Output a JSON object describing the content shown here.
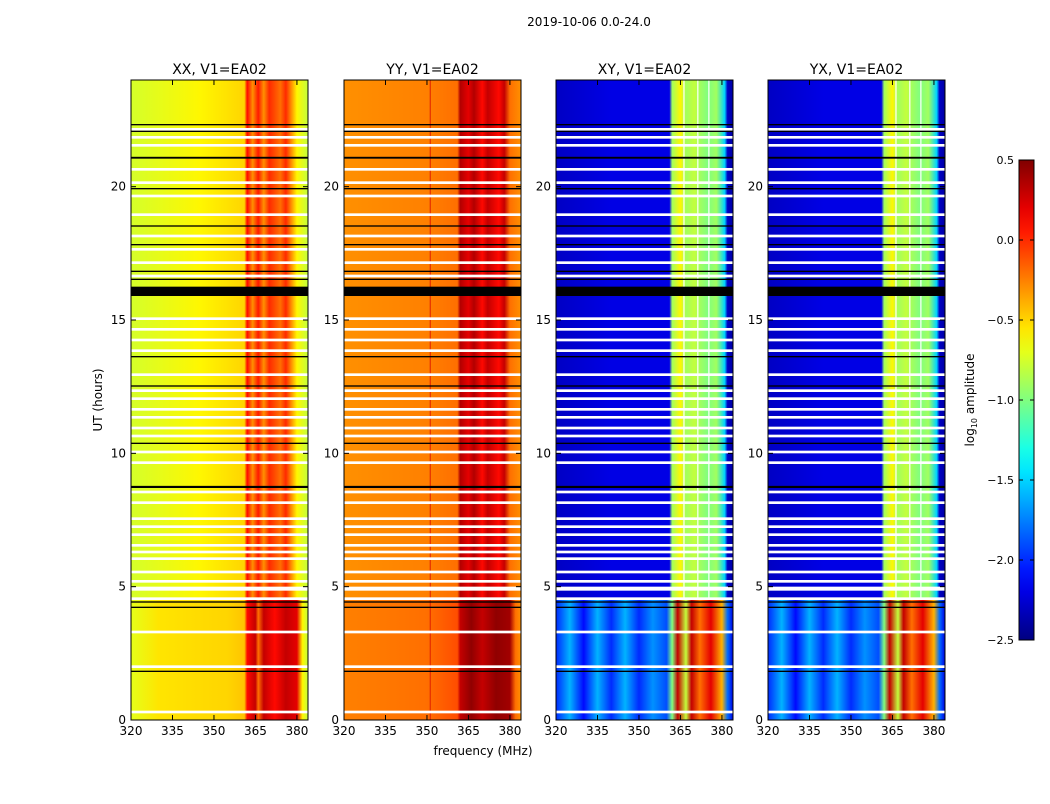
{
  "chart_data": {
    "type": "heatmap",
    "title": "2019-10-06 0.0-24.0",
    "xlabel": "frequency (MHz)",
    "ylabel": "UT (hours)",
    "xlim": [
      320,
      384
    ],
    "ylim": [
      0,
      24
    ],
    "xticks": [
      "320",
      "335",
      "350",
      "365",
      "380"
    ],
    "xtick_values": [
      320,
      335,
      350,
      365,
      380
    ],
    "yticks": [
      "0",
      "5",
      "10",
      "15",
      "20"
    ],
    "ytick_values": [
      0,
      5,
      10,
      15,
      20
    ],
    "colorbar": {
      "label_prefix": "log",
      "label_sub": "10",
      "label_suffix": " amplitude",
      "range": [
        -2.5,
        0.5
      ],
      "colormap": "jet",
      "ticks": [
        "0.5",
        "0.0",
        "−0.5",
        "−1.0",
        "−1.5",
        "−2.0",
        "−2.5"
      ],
      "tick_values": [
        0.5,
        0.0,
        -0.5,
        -1.0,
        -1.5,
        -2.0,
        -2.5
      ]
    },
    "epoch_boundary_hours": 4.5,
    "panels": [
      {
        "title": "XX, V1=EA02",
        "early_profile": [
          [
            320,
            -0.7
          ],
          [
            330,
            -0.55
          ],
          [
            355,
            -0.5
          ],
          [
            361,
            -0.45
          ],
          [
            362,
            0.1
          ],
          [
            365,
            0.3
          ],
          [
            366,
            -0.2
          ],
          [
            368,
            0.3
          ],
          [
            372,
            0.1
          ],
          [
            376,
            0.3
          ],
          [
            380,
            0.2
          ],
          [
            382,
            -0.6
          ],
          [
            384,
            -0.8
          ]
        ],
        "late_profile": [
          [
            320,
            -0.75
          ],
          [
            345,
            -0.6
          ],
          [
            361,
            -0.5
          ],
          [
            362,
            0.1
          ],
          [
            364,
            -0.3
          ],
          [
            366,
            0.05
          ],
          [
            368,
            -0.3
          ],
          [
            370,
            0.0
          ],
          [
            374,
            -0.2
          ],
          [
            376,
            0.0
          ],
          [
            378,
            -0.3
          ],
          [
            380,
            -0.6
          ],
          [
            384,
            -0.8
          ]
        ]
      },
      {
        "title": "YY, V1=EA02",
        "early_profile": [
          [
            320,
            -0.25
          ],
          [
            350,
            -0.2
          ],
          [
            361,
            -0.1
          ],
          [
            362,
            0.3
          ],
          [
            366,
            0.45
          ],
          [
            370,
            0.3
          ],
          [
            375,
            0.45
          ],
          [
            380,
            0.4
          ],
          [
            382,
            -0.2
          ],
          [
            384,
            -0.3
          ]
        ],
        "late_profile": [
          [
            320,
            -0.3
          ],
          [
            350,
            -0.25
          ],
          [
            361,
            -0.2
          ],
          [
            362,
            0.35
          ],
          [
            365,
            0.2
          ],
          [
            367,
            0.35
          ],
          [
            370,
            0.1
          ],
          [
            372,
            0.3
          ],
          [
            376,
            0.1
          ],
          [
            378,
            0.3
          ],
          [
            380,
            -0.2
          ],
          [
            384,
            -0.3
          ]
        ]
      },
      {
        "title": "XY, V1=EA02",
        "early_profile": [
          [
            320,
            -2.0
          ],
          [
            325,
            -1.6
          ],
          [
            330,
            -2.1
          ],
          [
            335,
            -1.6
          ],
          [
            340,
            -2.0
          ],
          [
            345,
            -1.6
          ],
          [
            350,
            -2.0
          ],
          [
            355,
            -1.7
          ],
          [
            360,
            -1.9
          ],
          [
            362,
            -1.0
          ],
          [
            364,
            0.3
          ],
          [
            367,
            -0.8
          ],
          [
            369,
            0.3
          ],
          [
            372,
            -0.2
          ],
          [
            376,
            0.2
          ],
          [
            380,
            -0.4
          ],
          [
            382,
            -1.8
          ],
          [
            384,
            -2.2
          ]
        ],
        "late_profile": [
          [
            320,
            -2.3
          ],
          [
            340,
            -2.2
          ],
          [
            361,
            -2.2
          ],
          [
            362,
            -0.9
          ],
          [
            365,
            -0.6
          ],
          [
            367,
            -0.9
          ],
          [
            370,
            -0.8
          ],
          [
            372,
            -0.9
          ],
          [
            375,
            -1.0
          ],
          [
            378,
            -0.9
          ],
          [
            381,
            -1.5
          ],
          [
            382,
            -2.3
          ],
          [
            384,
            -2.4
          ]
        ]
      },
      {
        "title": "YX, V1=EA02",
        "early_profile": [
          [
            320,
            -2.0
          ],
          [
            325,
            -1.6
          ],
          [
            330,
            -2.1
          ],
          [
            335,
            -1.6
          ],
          [
            340,
            -2.0
          ],
          [
            345,
            -1.6
          ],
          [
            350,
            -2.0
          ],
          [
            355,
            -1.7
          ],
          [
            360,
            -1.9
          ],
          [
            362,
            -1.0
          ],
          [
            364,
            0.3
          ],
          [
            367,
            -0.8
          ],
          [
            369,
            0.3
          ],
          [
            372,
            -0.2
          ],
          [
            376,
            0.2
          ],
          [
            380,
            -0.4
          ],
          [
            382,
            -1.8
          ],
          [
            384,
            -2.2
          ]
        ],
        "late_profile": [
          [
            320,
            -2.3
          ],
          [
            340,
            -2.2
          ],
          [
            361,
            -2.2
          ],
          [
            362,
            -0.9
          ],
          [
            365,
            -0.6
          ],
          [
            367,
            -0.9
          ],
          [
            370,
            -0.8
          ],
          [
            372,
            -0.9
          ],
          [
            375,
            -1.0
          ],
          [
            378,
            -0.9
          ],
          [
            381,
            -1.5
          ],
          [
            382,
            -2.3
          ],
          [
            384,
            -2.4
          ]
        ]
      }
    ],
    "flagged_hours": [
      [
        0.25,
        0.35
      ],
      [
        1.95,
        2.05
      ],
      [
        3.25,
        3.35
      ],
      [
        4.5,
        4.6
      ],
      [
        4.85,
        5.0
      ],
      [
        5.15,
        5.25
      ],
      [
        5.5,
        5.6
      ],
      [
        6.0,
        6.1
      ],
      [
        6.25,
        6.35
      ],
      [
        6.5,
        6.6
      ],
      [
        6.9,
        7.0
      ],
      [
        7.2,
        7.3
      ],
      [
        7.5,
        7.6
      ],
      [
        8.1,
        8.2
      ],
      [
        8.5,
        8.6
      ],
      [
        9.6,
        9.7
      ],
      [
        10.0,
        10.1
      ],
      [
        10.6,
        10.7
      ],
      [
        10.9,
        11.0
      ],
      [
        11.3,
        11.4
      ],
      [
        11.6,
        11.7
      ],
      [
        12.0,
        12.1
      ],
      [
        12.3,
        12.4
      ],
      [
        12.9,
        13.0
      ],
      [
        13.8,
        13.9
      ],
      [
        14.2,
        14.3
      ],
      [
        14.6,
        14.7
      ],
      [
        15.0,
        15.1
      ],
      [
        16.6,
        16.7
      ],
      [
        17.1,
        17.2
      ],
      [
        17.6,
        17.7
      ],
      [
        18.1,
        18.2
      ],
      [
        18.9,
        19.0
      ],
      [
        19.6,
        19.7
      ],
      [
        20.1,
        20.2
      ],
      [
        20.6,
        20.7
      ],
      [
        21.5,
        21.6
      ],
      [
        21.8,
        21.9
      ],
      [
        22.1,
        22.2
      ]
    ],
    "zero_hours": [
      [
        1.8,
        1.85
      ],
      [
        4.2,
        4.25
      ],
      [
        4.4,
        4.45
      ],
      [
        8.7,
        8.78
      ],
      [
        10.35,
        10.4
      ],
      [
        12.5,
        12.55
      ],
      [
        13.6,
        13.65
      ],
      [
        15.9,
        16.25
      ],
      [
        16.5,
        16.55
      ],
      [
        16.8,
        16.85
      ],
      [
        17.8,
        17.85
      ],
      [
        18.5,
        18.55
      ],
      [
        19.9,
        19.95
      ],
      [
        21.05,
        21.12
      ],
      [
        22.05,
        22.1
      ],
      [
        22.3,
        22.35
      ]
    ]
  }
}
